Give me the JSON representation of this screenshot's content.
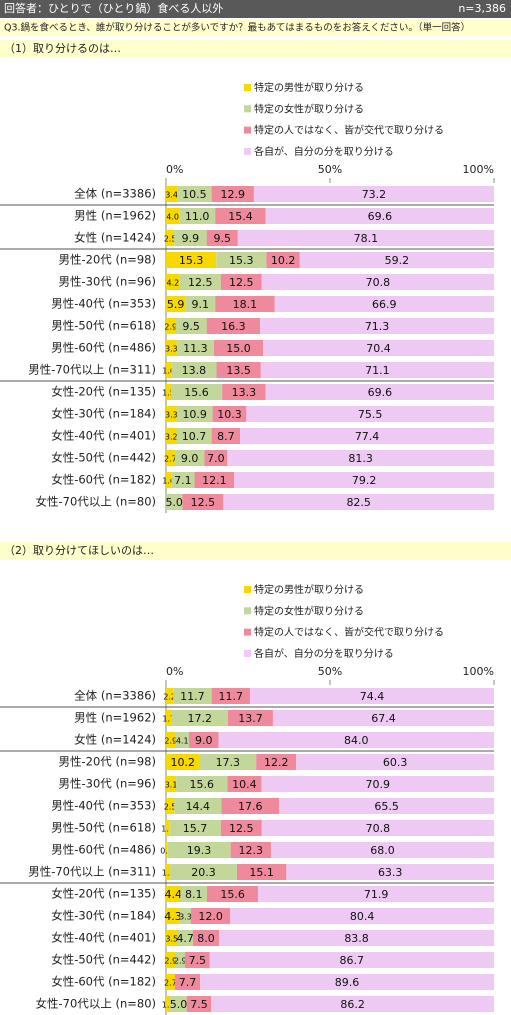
{
  "header": {
    "title": "回答者：ひとりで（ひとり鍋）食べる人以外",
    "n": "n=3,386",
    "question": "Q3.鍋を食べるとき、誰が取り分けることが多いですか？最もあてはまるものをお答えください。（単一回答）"
  },
  "chart_data": [
    {
      "type": "stacked-bar-horizontal",
      "title": "（1）取り分けるのは…",
      "categories": [
        "全体 (n=3386)",
        "男性 (n=1962)",
        "女性 (n=1424)",
        "男性-20代 (n=98)",
        "男性-30代 (n=96)",
        "男性-40代 (n=353)",
        "男性-50代 (n=618)",
        "男性-60代 (n=486)",
        "男性-70代以上 (n=311)",
        "女性-20代 (n=135)",
        "女性-30代 (n=184)",
        "女性-40代 (n=401)",
        "女性-50代 (n=442)",
        "女性-60代 (n=182)",
        "女性-70代以上 (n=80)"
      ],
      "xlim": [
        0,
        100
      ],
      "xticks": [
        {
          "value": 0,
          "label": "0%"
        },
        {
          "value": 50,
          "label": "50%"
        },
        {
          "value": 100,
          "label": "100%"
        }
      ],
      "series": [
        {
          "name": "特定の男性が取り分ける",
          "color": "#f7d800",
          "values": [
            3.4,
            4.0,
            2.5,
            15.3,
            4.2,
            5.9,
            2.9,
            3.3,
            1.6,
            1.5,
            3.3,
            3.2,
            2.7,
            1.6,
            0
          ],
          "value_labels": [
            "3.4",
            "4.0",
            "2.5",
            "15.3",
            "4.2",
            "5.9",
            "2.9",
            "3.3",
            "1.6",
            "1.5",
            "3.3",
            "3.2",
            "2.7",
            "1.6",
            null
          ]
        },
        {
          "name": "特定の女性が取り分ける",
          "color": "#c4d79b",
          "values": [
            10.5,
            11.0,
            9.9,
            15.3,
            12.5,
            9.1,
            9.5,
            11.3,
            13.8,
            15.6,
            10.9,
            10.7,
            9.0,
            7.1,
            5.0
          ],
          "value_labels": [
            "10.5",
            "11.0",
            "9.9",
            "15.3",
            "12.5",
            "9.1",
            "9.5",
            "11.3",
            "13.8",
            "15.6",
            "10.9",
            "10.7",
            "9.0",
            "7.1",
            "5.0"
          ]
        },
        {
          "name": "特定の人ではなく、皆が交代で取り分ける",
          "color": "#ef8a9c",
          "values": [
            12.9,
            15.4,
            9.5,
            10.2,
            12.5,
            18.1,
            16.3,
            15.0,
            13.5,
            13.3,
            10.3,
            8.7,
            7.0,
            12.1,
            12.5
          ],
          "value_labels": [
            "12.9",
            "15.4",
            "9.5",
            "10.2",
            "12.5",
            "18.1",
            "16.3",
            "15.0",
            "13.5",
            "13.3",
            "10.3",
            "8.7",
            "7.0",
            "12.1",
            "12.5"
          ]
        },
        {
          "name": "各自が、自分の分を取り分ける",
          "color": "#edc9f3",
          "values": [
            73.2,
            69.6,
            78.1,
            59.2,
            70.8,
            66.9,
            71.3,
            70.4,
            71.1,
            69.6,
            75.5,
            77.4,
            81.3,
            79.2,
            82.5
          ],
          "value_labels": [
            "73.2",
            "69.6",
            "78.1",
            "59.2",
            "70.8",
            "66.9",
            "71.3",
            "70.4",
            "71.1",
            "69.6",
            "75.5",
            "77.4",
            "81.3",
            "79.2",
            "82.5"
          ]
        }
      ]
    },
    {
      "type": "stacked-bar-horizontal",
      "title": "（2）取り分けてほしいのは…",
      "categories": [
        "全体 (n=3386)",
        "男性 (n=1962)",
        "女性 (n=1424)",
        "男性-20代 (n=98)",
        "男性-30代 (n=96)",
        "男性-40代 (n=353)",
        "男性-50代 (n=618)",
        "男性-60代 (n=486)",
        "男性-70代以上 (n=311)",
        "女性-20代 (n=135)",
        "女性-30代 (n=184)",
        "女性-40代 (n=401)",
        "女性-50代 (n=442)",
        "女性-60代 (n=182)",
        "女性-70代以上 (n=80)"
      ],
      "xlim": [
        0,
        100
      ],
      "xticks": [
        {
          "value": 0,
          "label": "0%"
        },
        {
          "value": 50,
          "label": "50%"
        },
        {
          "value": 100,
          "label": "100%"
        }
      ],
      "series": [
        {
          "name": "特定の男性が取り分ける",
          "color": "#f7d800",
          "values": [
            2.2,
            1.7,
            2.9,
            10.2,
            3.1,
            2.5,
            1.0,
            0.4,
            1.3,
            4.4,
            4.3,
            3.5,
            2.9,
            2.7,
            1.3
          ],
          "value_labels": [
            "2.2",
            "1.7",
            "2.9",
            "10.2",
            "3.1",
            "2.5",
            "1.0",
            "0.4",
            "1.3",
            "4.4",
            "4.3",
            "3.5",
            "2.9",
            "2.7",
            "1.3"
          ]
        },
        {
          "name": "特定の女性が取り分ける",
          "color": "#c4d79b",
          "values": [
            11.7,
            17.2,
            4.1,
            17.3,
            15.6,
            14.4,
            15.7,
            19.3,
            20.3,
            8.1,
            3.3,
            4.7,
            2.9,
            0,
            5.0
          ],
          "value_labels": [
            "11.7",
            "17.2",
            "4.1",
            "17.3",
            "15.6",
            "14.4",
            "15.7",
            "19.3",
            "20.3",
            "8.1",
            "3.3",
            "4.7",
            "2.9",
            null,
            "5.0"
          ]
        },
        {
          "name": "特定の人ではなく、皆が交代で取り分ける",
          "color": "#ef8a9c",
          "values": [
            11.7,
            13.7,
            9.0,
            12.2,
            10.4,
            17.6,
            12.5,
            12.3,
            15.1,
            15.6,
            12.0,
            8.0,
            7.5,
            7.7,
            7.5
          ],
          "value_labels": [
            "11.7",
            "13.7",
            "9.0",
            "12.2",
            "10.4",
            "17.6",
            "12.5",
            "12.3",
            "15.1",
            "15.6",
            "12.0",
            "8.0",
            "7.5",
            "7.7",
            "7.5"
          ]
        },
        {
          "name": "各自が、自分の分を取り分ける",
          "color": "#edc9f3",
          "values": [
            74.4,
            67.4,
            84.0,
            60.3,
            70.9,
            65.5,
            70.8,
            68.0,
            63.3,
            71.9,
            80.4,
            83.8,
            86.7,
            89.6,
            86.2
          ],
          "value_labels": [
            "74.4",
            "67.4",
            "84.0",
            "60.3",
            "70.9",
            "65.5",
            "70.8",
            "68.0",
            "63.3",
            "71.9",
            "80.4",
            "83.8",
            "86.7",
            "89.6",
            "86.2"
          ]
        }
      ]
    }
  ]
}
